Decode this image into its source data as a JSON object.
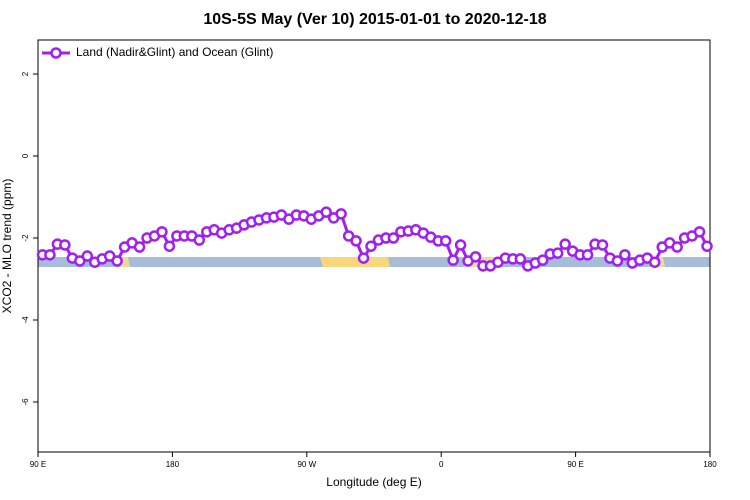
{
  "chart_data": {
    "type": "line",
    "title": "10S-5S May (Ver 10)   2015-01-01 to 2020-12-18",
    "x_label": "Longitude (deg E)",
    "y_label": "XCO2 - MLO trend (ppm)",
    "legend": "top-left",
    "xlim": [
      90,
      540
    ],
    "xticks": [
      {
        "value": 90,
        "label": "90 E"
      },
      180,
      {
        "value": 270,
        "label": "90 W"
      },
      {
        "value": 360,
        "label": "0"
      },
      {
        "value": 450,
        "label": "90 E"
      },
      {
        "value": 540,
        "label": "180"
      }
    ],
    "ylim": [
      -7.22,
      2.83
    ],
    "yticks": [
      2,
      0,
      -2,
      -4,
      -6
    ],
    "x": [
      93,
      98,
      103,
      108,
      113,
      118,
      123,
      128,
      133,
      138,
      143,
      148,
      153,
      158,
      163,
      168,
      173,
      178,
      183,
      188,
      193,
      198,
      203,
      208,
      213,
      218,
      223,
      228,
      233,
      238,
      243,
      248,
      253,
      258,
      263,
      268,
      273,
      278,
      283,
      288,
      293,
      298,
      303,
      308,
      313,
      318,
      323,
      328,
      333,
      338,
      343,
      348,
      353,
      358,
      363,
      368,
      373,
      378,
      383,
      388,
      393,
      398,
      403,
      408,
      413,
      418,
      423,
      428,
      433,
      438,
      443,
      448,
      453,
      458,
      463,
      468,
      473,
      478,
      483,
      488,
      493,
      498,
      503,
      508,
      513,
      518,
      523,
      528,
      533,
      538
    ],
    "series": [
      {
        "name": "Land (Nadir&Glint) and Ocean (Glint)",
        "color": "#a020f0",
        "values": [
          -2.41,
          -2.41,
          -2.15,
          -2.17,
          -2.49,
          -2.56,
          -2.44,
          -2.59,
          -2.51,
          -2.44,
          -2.56,
          -2.22,
          -2.12,
          -2.22,
          -2.0,
          -1.95,
          -1.85,
          -2.2,
          -1.95,
          -1.95,
          -1.95,
          -2.05,
          -1.85,
          -1.8,
          -1.88,
          -1.8,
          -1.76,
          -1.68,
          -1.61,
          -1.56,
          -1.51,
          -1.49,
          -1.44,
          -1.54,
          -1.44,
          -1.46,
          -1.54,
          -1.46,
          -1.37,
          -1.51,
          -1.41,
          -1.95,
          -2.07,
          -2.49,
          -2.2,
          -2.05,
          -2.0,
          -2.0,
          -1.85,
          -1.83,
          -1.8,
          -1.88,
          -1.98,
          -2.07,
          -2.07,
          -2.54,
          -2.17,
          -2.56,
          -2.46,
          -2.68,
          -2.68,
          -2.59,
          -2.49,
          -2.51,
          -2.51,
          -2.68,
          -2.61,
          -2.54,
          -2.39,
          -2.37,
          -2.15,
          -2.32,
          -2.41,
          -2.41,
          -2.15,
          -2.17,
          -2.49,
          -2.56,
          -2.41,
          -2.61,
          -2.54,
          -2.49,
          -2.59,
          -2.22,
          -2.12,
          -2.22,
          -2.0,
          -1.95,
          -1.85,
          -2.2
        ]
      }
    ]
  }
}
